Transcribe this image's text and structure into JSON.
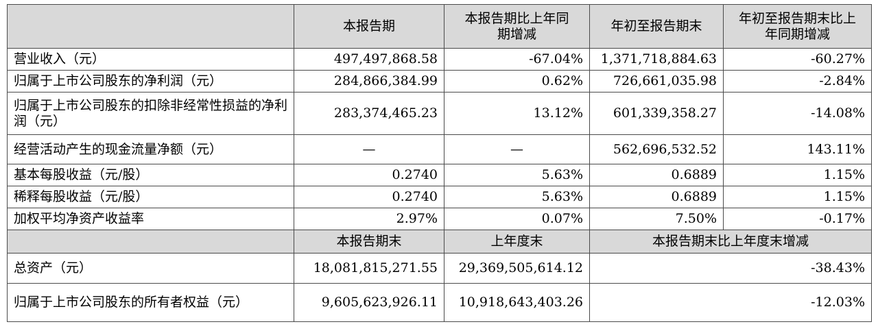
{
  "header": {
    "col1": "本报告期",
    "col2": "本报告期比上年同期增减",
    "col3": "年初至报告期末",
    "col4": "年初至报告期末比上年同期增减"
  },
  "rows": [
    {
      "label": "营业收入（元）",
      "v1": "497,497,868.58",
      "v2": "-67.04%",
      "v3": "1,371,718,884.63",
      "v4": "-60.27%"
    },
    {
      "label": "归属于上市公司股东的净利润（元）",
      "v1": "284,866,384.99",
      "v2": "0.62%",
      "v3": "726,661,035.98",
      "v4": "-2.84%"
    },
    {
      "label": "归属于上市公司股东的扣除非经常性损益的净利润（元）",
      "v1": "283,374,465.23",
      "v2": "13.12%",
      "v3": "601,339,358.27",
      "v4": "-14.08%"
    },
    {
      "label": "经营活动产生的现金流量净额（元）",
      "v1": "—",
      "v2": "—",
      "v3": "562,696,532.52",
      "v4": "143.11%"
    },
    {
      "label": "基本每股收益（元/股）",
      "v1": "0.2740",
      "v2": "5.63%",
      "v3": "0.6889",
      "v4": "1.15%"
    },
    {
      "label": "稀释每股收益（元/股）",
      "v1": "0.2740",
      "v2": "5.63%",
      "v3": "0.6889",
      "v4": "1.15%"
    },
    {
      "label": "加权平均净资产收益率",
      "v1": "2.97%",
      "v2": "0.07%",
      "v3": "7.50%",
      "v4": "-0.17%"
    }
  ],
  "header2": {
    "col1": "本报告期末",
    "col2": "上年度末",
    "col3": "本报告期末比上年度末增减"
  },
  "rows2": [
    {
      "label": "总资产（元）",
      "v1": "18,081,815,271.55",
      "v2": "29,369,505,614.12",
      "v3": "-38.43%"
    },
    {
      "label": "归属于上市公司股东的所有者权益（元）",
      "v1": "9,605,623,926.11",
      "v2": "10,918,643,403.26",
      "v3": "-12.03%"
    }
  ]
}
